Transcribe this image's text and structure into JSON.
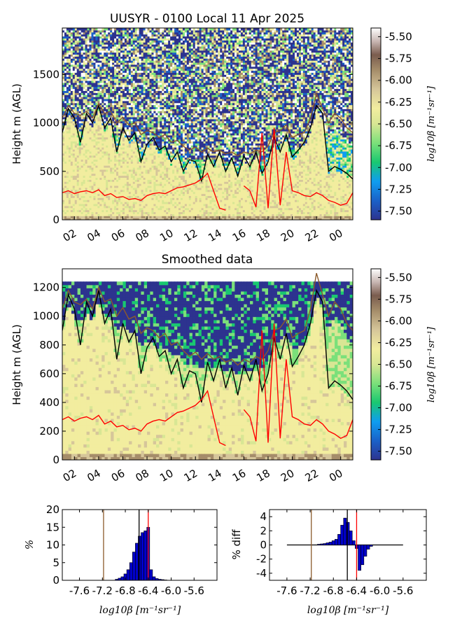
{
  "chart_data": [
    {
      "id": "raw",
      "type": "heatmap",
      "title": "UUSYR - 0100 Local 11 Apr 2025",
      "xlabel": "",
      "ylabel": "Height m (AGL)",
      "x_ticks": [
        "02",
        "04",
        "06",
        "08",
        "10",
        "12",
        "14",
        "16",
        "18",
        "20",
        "22",
        "00"
      ],
      "x_range_hours": [
        1,
        25
      ],
      "ylim": [
        0,
        1980
      ],
      "y_ticks": [
        0,
        500,
        1000,
        1500
      ],
      "colorbar": {
        "label": "log10β [m⁻¹sr⁻¹]",
        "range": [
          -7.6,
          -5.4
        ],
        "ticks": [
          "-5.50",
          "-5.75",
          "-6.00",
          "-6.25",
          "-6.50",
          "-6.75",
          "-7.00",
          "-7.25",
          "-7.50"
        ]
      },
      "lines": [
        {
          "color": "#000000",
          "x": [
            1,
            1.5,
            2,
            2.5,
            3,
            3.5,
            4,
            4.5,
            5,
            5.5,
            6,
            6.5,
            7,
            7.5,
            8,
            8.5,
            9,
            9.5,
            10,
            10.5,
            11,
            11.5,
            12,
            12.5,
            13,
            13.5,
            14,
            14.5,
            15,
            15.5,
            16,
            16.5,
            17,
            17.5,
            18,
            18.5,
            19,
            19.5,
            20,
            20.5,
            21,
            21.5,
            22,
            22.5,
            23,
            23.5,
            24,
            24.5,
            25
          ],
          "y": [
            900,
            1150,
            1050,
            800,
            1100,
            1000,
            1180,
            950,
            1050,
            700,
            950,
            820,
            900,
            600,
            780,
            850,
            720,
            760,
            600,
            700,
            500,
            620,
            600,
            400,
            680,
            550,
            700,
            500,
            640,
            450,
            660,
            550,
            700,
            480,
            600,
            850,
            700,
            880,
            650,
            720,
            800,
            950,
            1180,
            1100,
            500,
            550,
            520,
            480,
            420
          ]
        },
        {
          "color": "#8b5a2b",
          "x": [
            1,
            1.5,
            2,
            2.5,
            3,
            3.5,
            4,
            4.5,
            5,
            5.5,
            6,
            6.5,
            7,
            7.5,
            8,
            8.5,
            9,
            9.5,
            10,
            10.5,
            11,
            11.5,
            12,
            12.5,
            13,
            13.5,
            14,
            14.5,
            15,
            15.5,
            16,
            16.5,
            17,
            17.5,
            18,
            18.5,
            19,
            19.5,
            20,
            20.5,
            21,
            21.5,
            22,
            22.5,
            23,
            23.5,
            24,
            24.5,
            25
          ],
          "y": [
            1050,
            1180,
            1100,
            1080,
            1120,
            1050,
            1200,
            1100,
            1120,
            1000,
            1060,
            980,
            1000,
            880,
            920,
            900,
            850,
            880,
            800,
            820,
            760,
            720,
            750,
            700,
            740,
            700,
            720,
            680,
            700,
            660,
            700,
            680,
            720,
            700,
            760,
            900,
            920,
            980,
            850,
            880,
            900,
            1050,
            1300,
            1150,
            1000,
            1100,
            1050,
            950,
            900
          ]
        },
        {
          "color": "#ff0000",
          "x": [
            1,
            1.5,
            2,
            2.5,
            3,
            3.5,
            4,
            4.5,
            5,
            5.5,
            6,
            6.5,
            7,
            7.5,
            8,
            8.5,
            9,
            9.5,
            10,
            10.5,
            11,
            11.5,
            12,
            12.5,
            13,
            13.5,
            14,
            14.5,
            15,
            15.5,
            16,
            16.5,
            17,
            17.5,
            18,
            18.5,
            19,
            19.5,
            20,
            20.5,
            21,
            21.5,
            22,
            22.5,
            23,
            23.5,
            24,
            24.5,
            25
          ],
          "y": [
            280,
            300,
            270,
            290,
            300,
            280,
            310,
            250,
            270,
            230,
            240,
            210,
            220,
            200,
            250,
            270,
            280,
            270,
            300,
            330,
            340,
            360,
            380,
            420,
            480,
            300,
            120,
            100,
            null,
            null,
            350,
            300,
            130,
            900,
            120,
            950,
            150,
            700,
            300,
            280,
            250,
            240,
            280,
            250,
            200,
            180,
            150,
            170,
            280
          ]
        }
      ]
    },
    {
      "id": "smooth",
      "type": "heatmap",
      "title": "Smoothed data",
      "xlabel": "",
      "ylabel": "Height m (AGL)",
      "x_ticks": [
        "02",
        "04",
        "06",
        "08",
        "10",
        "12",
        "14",
        "16",
        "18",
        "20",
        "22",
        "00"
      ],
      "x_range_hours": [
        1,
        25
      ],
      "ylim": [
        0,
        1330
      ],
      "y_ticks": [
        0,
        200,
        400,
        600,
        800,
        1000,
        1200
      ],
      "colorbar": {
        "label": "log10β [m⁻¹sr⁻¹]",
        "range": [
          -7.6,
          -5.4
        ],
        "ticks": [
          "-5.50",
          "-5.75",
          "-6.00",
          "-6.25",
          "-6.50",
          "-6.75",
          "-7.00",
          "-7.25",
          "-7.50"
        ]
      }
    },
    {
      "id": "hist",
      "type": "bar",
      "xlabel": "log10β [m⁻¹sr⁻¹]",
      "ylabel": "%",
      "x_ticks": [
        "-7.6",
        "-7.2",
        "-6.8",
        "-6.4",
        "-6.0",
        "-5.6"
      ],
      "xlim": [
        -7.9,
        -5.2
      ],
      "ylim": [
        0,
        20
      ],
      "y_ticks": [
        0,
        5,
        10,
        15,
        20
      ],
      "bar_width": 0.05,
      "x": [
        -6.95,
        -6.9,
        -6.85,
        -6.8,
        -6.75,
        -6.7,
        -6.65,
        -6.6,
        -6.55,
        -6.5,
        -6.45,
        -6.4,
        -6.35,
        -6.3,
        -6.25,
        -6.2,
        -6.15,
        -6.1
      ],
      "values": [
        0.3,
        0.6,
        1.0,
        1.8,
        3.0,
        5.0,
        8.0,
        10.5,
        12.5,
        13.5,
        14.0,
        15.0,
        3.0,
        1.0,
        0.5,
        0.3,
        0.2,
        0.1
      ],
      "vlines": [
        {
          "x": -7.18,
          "color": "#8b5a2b"
        },
        {
          "x": -6.56,
          "color": "#000000"
        },
        {
          "x": -6.4,
          "color": "#ff0000"
        }
      ]
    },
    {
      "id": "diff",
      "type": "bar",
      "xlabel": "log10β [m⁻¹sr⁻¹]",
      "ylabel": "% diff",
      "x_ticks": [
        "-7.6",
        "-7.2",
        "-6.8",
        "-6.4",
        "-6.0",
        "-5.6"
      ],
      "xlim": [
        -7.9,
        -5.2
      ],
      "ylim": [
        -5,
        5
      ],
      "y_ticks": [
        -4,
        -2,
        0,
        2,
        4
      ],
      "bar_width": 0.05,
      "x": [
        -7.05,
        -7.0,
        -6.95,
        -6.9,
        -6.85,
        -6.8,
        -6.75,
        -6.7,
        -6.65,
        -6.6,
        -6.55,
        -6.5,
        -6.45,
        -6.4,
        -6.35,
        -6.3,
        -6.25,
        -6.2,
        -6.15
      ],
      "values": [
        0.1,
        0.15,
        0.2,
        0.3,
        0.4,
        0.6,
        0.8,
        1.5,
        2.8,
        3.8,
        3.2,
        2.0,
        0.6,
        -0.5,
        -3.6,
        -2.8,
        -1.6,
        -0.6,
        -0.2
      ],
      "baseline_range": [
        -7.6,
        -5.6
      ],
      "vlines": [
        {
          "x": -7.18,
          "color": "#8b5a2b"
        },
        {
          "x": -6.56,
          "color": "#000000"
        },
        {
          "x": -6.4,
          "color": "#ff0000"
        }
      ]
    }
  ],
  "colors": {
    "bar": "#0000cc",
    "cmap": [
      "#2d338f",
      "#1a61c8",
      "#0f9df0",
      "#19c870",
      "#7be07a",
      "#d8e694",
      "#f2ed9f",
      "#d6c69a",
      "#a58d6a",
      "#7a5c4e",
      "#c8b6b2",
      "#fefefe"
    ]
  }
}
